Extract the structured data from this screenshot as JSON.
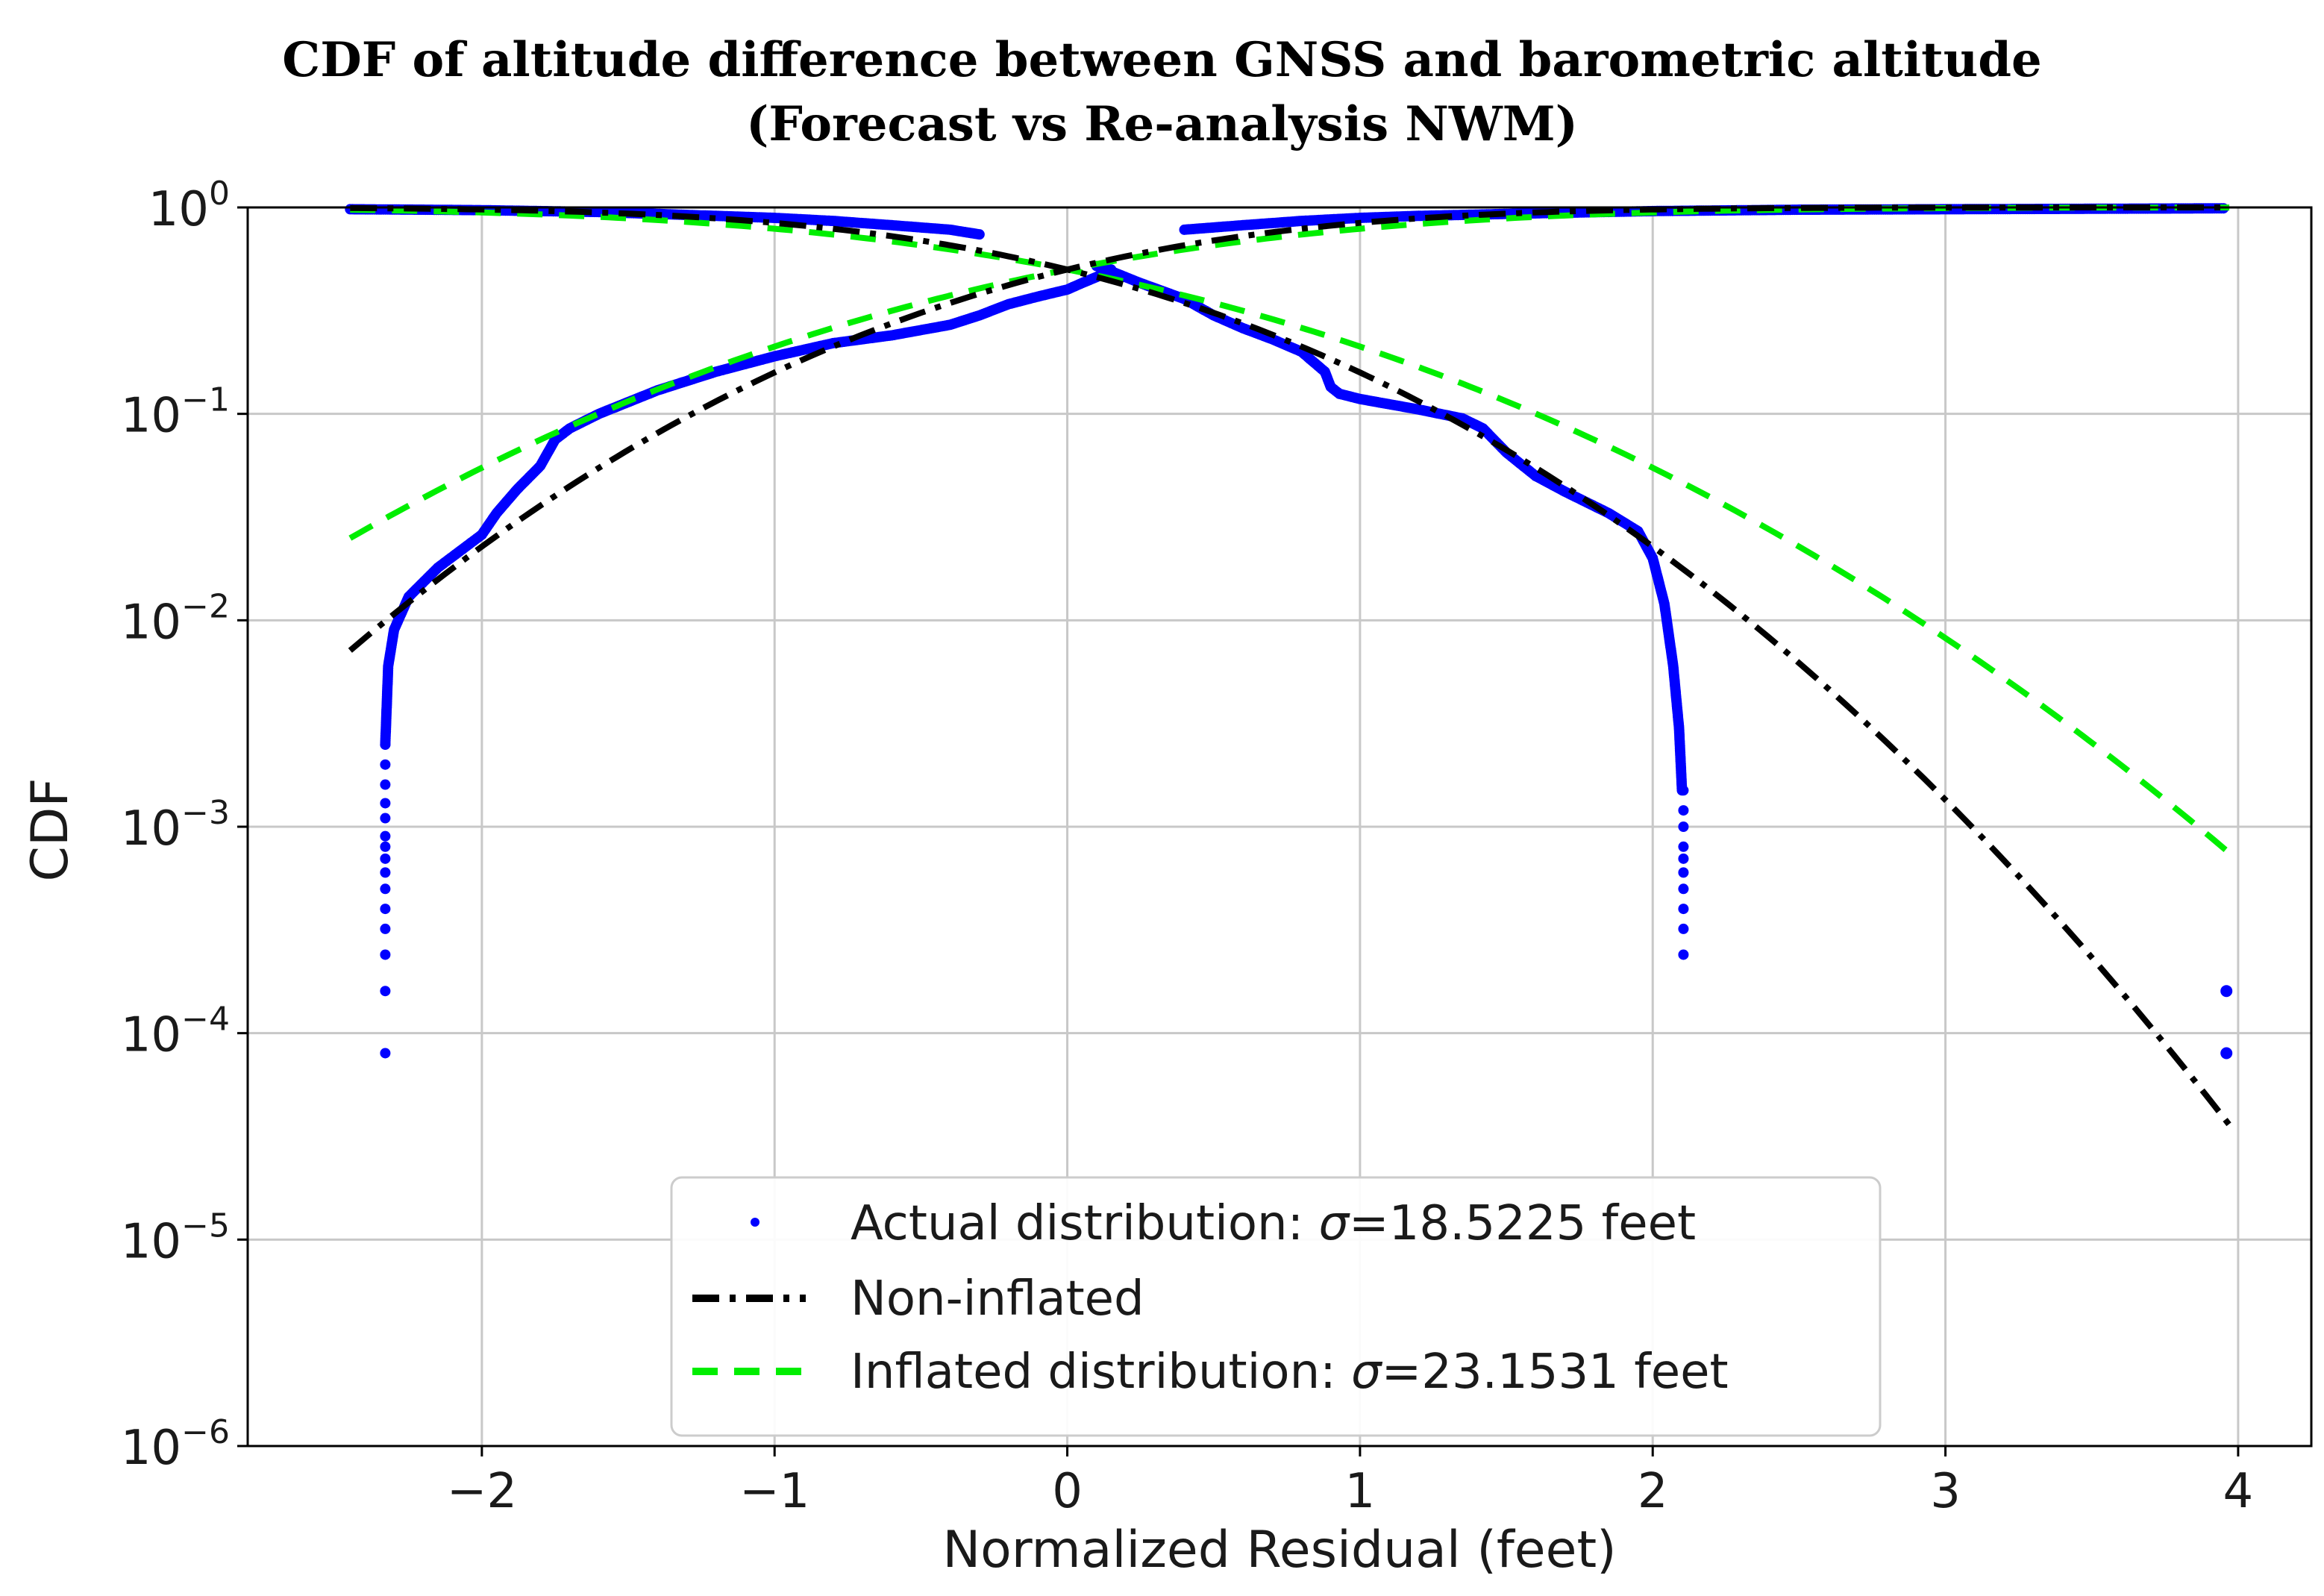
{
  "chart_data": {
    "type": "line",
    "title": "CDF of altitude difference between GNSS and barometric altitude",
    "subtitle": "(Forecast vs Re-analysis NWM)",
    "xlabel": "Normalized Residual (feet)",
    "ylabel": "CDF",
    "xlim": [
      -2.8,
      4.25
    ],
    "ylim": [
      1e-06,
      1
    ],
    "yscale": "log",
    "grid": true,
    "x_ticks": [
      -2,
      -1,
      0,
      1,
      2,
      3,
      4
    ],
    "x_tick_labels": [
      "−2",
      "−1",
      "0",
      "1",
      "2",
      "3",
      "4"
    ],
    "y_ticks": [
      {
        "value": 1,
        "base": "10",
        "exp": "0"
      },
      {
        "value": 0.1,
        "base": "10",
        "exp": "−1"
      },
      {
        "value": 0.01,
        "base": "10",
        "exp": "−2"
      },
      {
        "value": 0.001,
        "base": "10",
        "exp": "−3"
      },
      {
        "value": 0.0001,
        "base": "10",
        "exp": "−4"
      },
      {
        "value": 1e-05,
        "base": "10",
        "exp": "−5"
      },
      {
        "value": 1e-06,
        "base": "10",
        "exp": "−6"
      }
    ],
    "legend_position": "bottom-center",
    "series": [
      {
        "name": "Actual distribution: σ=18.5225 feet",
        "legend_prefix": "Actual distribution: ",
        "legend_sigma": "σ",
        "legend_suffix": "=18.5225 feet",
        "style": "dots",
        "color": "#0000ff",
        "lower_tail": {
          "x": [
            -2.33,
            -2.32,
            -2.3,
            -2.25,
            -2.15,
            -2.0,
            -1.95,
            -1.88,
            -1.8,
            -1.75,
            -1.7,
            -1.6,
            -1.4,
            -1.2,
            -1.0,
            -0.8,
            -0.6,
            -0.4,
            -0.3,
            -0.2,
            -0.1,
            0.0,
            0.05,
            0.1,
            0.15
          ],
          "y": [
            0.0025,
            0.006,
            0.009,
            0.013,
            0.018,
            0.026,
            0.033,
            0.043,
            0.056,
            0.075,
            0.085,
            0.1,
            0.13,
            0.16,
            0.19,
            0.22,
            0.24,
            0.27,
            0.3,
            0.34,
            0.37,
            0.4,
            0.43,
            0.46,
            0.5
          ]
        },
        "upper_tail": {
          "x": [
            0.1,
            0.15,
            0.25,
            0.4,
            0.5,
            0.6,
            0.7,
            0.8,
            0.88,
            0.9,
            0.93,
            1.0,
            1.2,
            1.35,
            1.42,
            1.5,
            1.6,
            1.7,
            1.85,
            1.95,
            2.0,
            2.04,
            2.07,
            2.09,
            2.1
          ],
          "y": [
            0.52,
            0.49,
            0.43,
            0.36,
            0.3,
            0.26,
            0.23,
            0.2,
            0.16,
            0.135,
            0.125,
            0.118,
            0.105,
            0.095,
            0.085,
            0.065,
            0.05,
            0.042,
            0.033,
            0.027,
            0.02,
            0.012,
            0.006,
            0.003,
            0.0015
          ]
        },
        "left_dropoff": {
          "x": -2.33,
          "y": [
            0.0025,
            0.002,
            0.0016,
            0.0013,
            0.0011,
            0.0009,
            0.0008,
            0.0007,
            0.0006,
            0.0005,
            0.0004,
            0.00032,
            0.00024,
            0.00016,
            8e-05
          ]
        },
        "right_dropoff": {
          "x": 2.105,
          "y": [
            0.0015,
            0.0012,
            0.001,
            0.0008,
            0.0007,
            0.0006,
            0.0005,
            0.0004,
            0.00032,
            0.00024
          ]
        },
        "lower_plateau": {
          "x": [
            -2.45,
            -2.2,
            -2.0,
            -1.8,
            -1.6,
            -1.4,
            -1.2,
            -1.0,
            -0.8,
            -0.6,
            -0.4,
            -0.3
          ],
          "y": [
            0.98,
            0.975,
            0.97,
            0.96,
            0.95,
            0.93,
            0.91,
            0.89,
            0.86,
            0.82,
            0.78,
            0.74
          ]
        },
        "upper_plateau": {
          "x": [
            0.4,
            0.6,
            0.8,
            1.0,
            1.2,
            1.5,
            2.0,
            2.5,
            3.0,
            3.5,
            3.95
          ],
          "y": [
            0.78,
            0.82,
            0.86,
            0.89,
            0.91,
            0.93,
            0.96,
            0.975,
            0.98,
            0.985,
            0.99
          ]
        },
        "far_points": {
          "x": [
            3.96,
            3.96
          ],
          "y": [
            0.00016,
            8e-05
          ]
        }
      },
      {
        "name": "Non-inflated",
        "style": "dashdot",
        "color": "#000000",
        "sigma": 1.0,
        "x_range": [
          -2.45,
          3.97
        ]
      },
      {
        "name": "Inflated distribution: σ=23.1531 feet",
        "legend_prefix": "Inflated distribution: ",
        "legend_sigma": "σ",
        "legend_suffix": "=23.1531 feet",
        "style": "dashed",
        "color": "#00ee00",
        "sigma": 1.25,
        "x_range": [
          -2.45,
          3.97
        ]
      }
    ]
  }
}
